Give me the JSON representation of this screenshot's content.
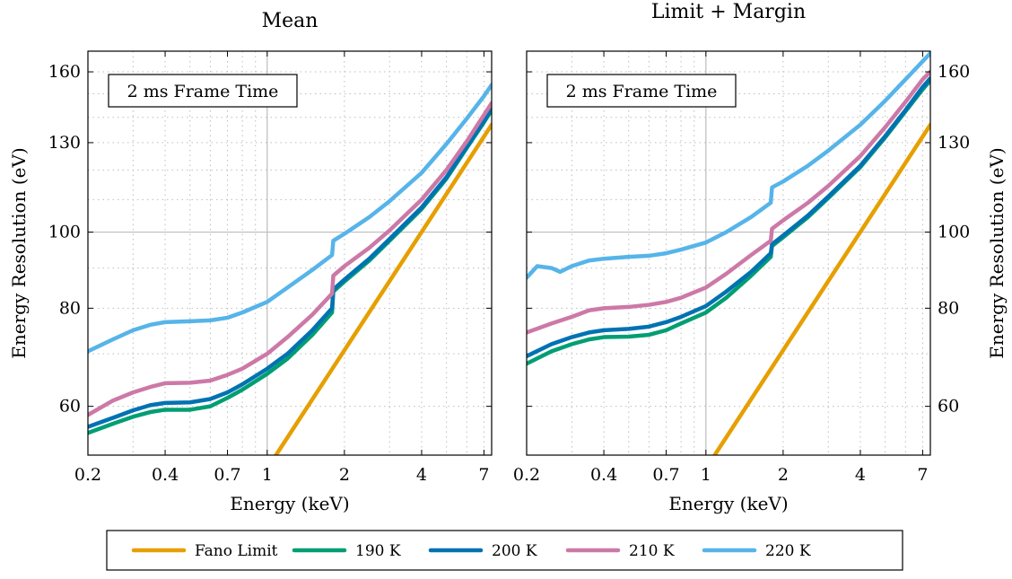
{
  "chart_data": [
    {
      "type": "line",
      "title": "Mean",
      "xlabel": "Energy (keV)",
      "ylabel": "Energy Resolution (eV)",
      "xscale": "log",
      "yscale": "log",
      "xlim": [
        0.2,
        7.5
      ],
      "ylim": [
        52,
        170
      ],
      "xticks": [
        0.2,
        0.4,
        0.7,
        1,
        2,
        4,
        7
      ],
      "xtick_labels": [
        "0.2",
        "0.4",
        "0.7",
        "1",
        "2",
        "4",
        "7"
      ],
      "yticks": [
        60,
        80,
        100,
        130,
        160
      ],
      "ytick_labels": [
        "60",
        "80",
        "100",
        "130",
        "160"
      ],
      "yaxis_side": "left",
      "grid": true,
      "annotation": "2 ms Frame Time",
      "series": [
        {
          "name": "Fano Limit",
          "color": "#e69f00",
          "x": [
            1.0,
            7.5
          ],
          "y": [
            50,
            137
          ]
        },
        {
          "name": "190 K",
          "color": "#009e73",
          "x": [
            0.2,
            0.25,
            0.3,
            0.35,
            0.4,
            0.5,
            0.6,
            0.7,
            0.8,
            1.0,
            1.2,
            1.5,
            1.79,
            1.81,
            2.0,
            2.5,
            3.0,
            4.0,
            5.0,
            6.0,
            7.0,
            7.5
          ],
          "y": [
            55.5,
            57.0,
            58.2,
            59.0,
            59.4,
            59.4,
            60.0,
            61.5,
            63.0,
            66.0,
            69.0,
            74.0,
            79.0,
            84.0,
            86.5,
            92.0,
            97.5,
            107.0,
            117.0,
            128.0,
            138.0,
            143.0
          ]
        },
        {
          "name": "200 K",
          "color": "#0072b2",
          "x": [
            0.2,
            0.25,
            0.3,
            0.35,
            0.4,
            0.5,
            0.6,
            0.7,
            0.8,
            1.0,
            1.2,
            1.5,
            1.79,
            1.81,
            2.0,
            2.5,
            3.0,
            4.0,
            5.0,
            6.0,
            7.0,
            7.5
          ],
          "y": [
            56.5,
            58.0,
            59.3,
            60.2,
            60.6,
            60.7,
            61.3,
            62.5,
            64.0,
            67.0,
            70.0,
            75.0,
            80.0,
            84.5,
            87.0,
            92.5,
            98.0,
            107.5,
            117.5,
            128.5,
            138.5,
            144.0
          ]
        },
        {
          "name": "210 K",
          "color": "#cc79a7",
          "x": [
            0.2,
            0.25,
            0.3,
            0.35,
            0.4,
            0.5,
            0.6,
            0.7,
            0.8,
            1.0,
            1.2,
            1.5,
            1.79,
            1.81,
            2.0,
            2.5,
            3.0,
            4.0,
            5.0,
            6.0,
            7.0,
            7.5
          ],
          "y": [
            58.5,
            61.0,
            62.5,
            63.5,
            64.2,
            64.3,
            64.7,
            65.8,
            67.0,
            70.0,
            73.5,
            78.5,
            83.5,
            88.0,
            90.5,
            95.5,
            100.5,
            110.0,
            120.0,
            130.5,
            141.0,
            146.0
          ]
        },
        {
          "name": "220 K",
          "color": "#56b4e9",
          "x": [
            0.2,
            0.25,
            0.3,
            0.35,
            0.4,
            0.5,
            0.6,
            0.7,
            0.8,
            1.0,
            1.2,
            1.5,
            1.79,
            1.81,
            2.0,
            2.5,
            3.0,
            4.0,
            5.0,
            6.0,
            7.0,
            7.5
          ],
          "y": [
            70.5,
            73.0,
            75.0,
            76.2,
            76.8,
            77.0,
            77.2,
            77.8,
            79.0,
            81.5,
            85.0,
            89.5,
            93.5,
            97.5,
            99.5,
            104.5,
            109.5,
            119.0,
            129.5,
            139.5,
            149.0,
            154.0
          ]
        }
      ]
    },
    {
      "type": "line",
      "title": "Limit + Margin",
      "xlabel": "Energy (keV)",
      "ylabel": "Energy Resolution (eV)",
      "xscale": "log",
      "yscale": "log",
      "xlim": [
        0.2,
        7.5
      ],
      "ylim": [
        52,
        170
      ],
      "xticks": [
        0.2,
        0.4,
        0.7,
        1,
        2,
        4,
        7
      ],
      "xtick_labels": [
        "0.2",
        "0.4",
        "0.7",
        "1",
        "2",
        "4",
        "7"
      ],
      "yticks": [
        60,
        80,
        100,
        130,
        160
      ],
      "ytick_labels": [
        "60",
        "80",
        "100",
        "130",
        "160"
      ],
      "yaxis_side": "right",
      "grid": true,
      "annotation": "2 ms Frame Time",
      "series": [
        {
          "name": "Fano Limit",
          "color": "#e69f00",
          "x": [
            1.0,
            7.5
          ],
          "y": [
            50,
            137
          ]
        },
        {
          "name": "190 K",
          "color": "#009e73",
          "x": [
            0.2,
            0.25,
            0.3,
            0.35,
            0.4,
            0.5,
            0.6,
            0.7,
            0.8,
            1.0,
            1.2,
            1.5,
            1.79,
            1.81,
            2.0,
            2.5,
            3.0,
            4.0,
            5.0,
            6.0,
            7.0,
            7.5
          ],
          "y": [
            68.0,
            70.5,
            72.0,
            73.0,
            73.5,
            73.6,
            74.0,
            75.0,
            76.5,
            79.0,
            82.5,
            88.0,
            93.0,
            96.0,
            98.5,
            104.5,
            110.5,
            121.0,
            132.0,
            142.5,
            152.0,
            156.0
          ]
        },
        {
          "name": "200 K",
          "color": "#0072b2",
          "x": [
            0.2,
            0.25,
            0.3,
            0.35,
            0.4,
            0.5,
            0.6,
            0.7,
            0.8,
            1.0,
            1.2,
            1.5,
            1.79,
            1.81,
            2.0,
            2.5,
            3.0,
            4.0,
            5.0,
            6.0,
            7.0,
            7.5
          ],
          "y": [
            69.5,
            72.0,
            73.5,
            74.5,
            75.0,
            75.3,
            75.8,
            76.8,
            78.0,
            80.5,
            84.0,
            89.0,
            94.0,
            96.5,
            99.0,
            105.0,
            111.0,
            121.5,
            132.5,
            143.0,
            153.0,
            157.0
          ]
        },
        {
          "name": "210 K",
          "color": "#cc79a7",
          "x": [
            0.2,
            0.25,
            0.3,
            0.35,
            0.4,
            0.5,
            0.6,
            0.7,
            0.8,
            1.0,
            1.2,
            1.5,
            1.79,
            1.81,
            2.0,
            2.5,
            3.0,
            4.0,
            5.0,
            6.0,
            7.0,
            7.5
          ],
          "y": [
            74.5,
            76.5,
            78.0,
            79.5,
            80.0,
            80.3,
            80.8,
            81.5,
            82.5,
            85.0,
            88.5,
            93.5,
            97.5,
            101.0,
            103.5,
            109.0,
            114.5,
            125.0,
            136.0,
            146.5,
            156.5,
            160.0
          ]
        },
        {
          "name": "220 K",
          "color": "#56b4e9",
          "x": [
            0.2,
            0.22,
            0.25,
            0.27,
            0.3,
            0.35,
            0.4,
            0.5,
            0.6,
            0.7,
            0.8,
            1.0,
            1.2,
            1.5,
            1.79,
            1.81,
            2.0,
            2.5,
            3.0,
            4.0,
            5.0,
            6.0,
            7.0,
            7.5
          ],
          "y": [
            87.5,
            90.5,
            90.0,
            89.0,
            90.5,
            92.0,
            92.5,
            93.0,
            93.3,
            94.0,
            95.0,
            97.0,
            100.0,
            104.5,
            109.0,
            114.0,
            116.0,
            121.5,
            127.0,
            137.0,
            147.0,
            156.5,
            165.0,
            169.0
          ]
        }
      ]
    }
  ],
  "legend": {
    "position": "bottom",
    "entries": [
      {
        "label": "Fano Limit",
        "color": "#e69f00"
      },
      {
        "label": "190 K",
        "color": "#009e73"
      },
      {
        "label": "200 K",
        "color": "#0072b2"
      },
      {
        "label": "210 K",
        "color": "#cc79a7"
      },
      {
        "label": "220 K",
        "color": "#56b4e9"
      }
    ]
  }
}
